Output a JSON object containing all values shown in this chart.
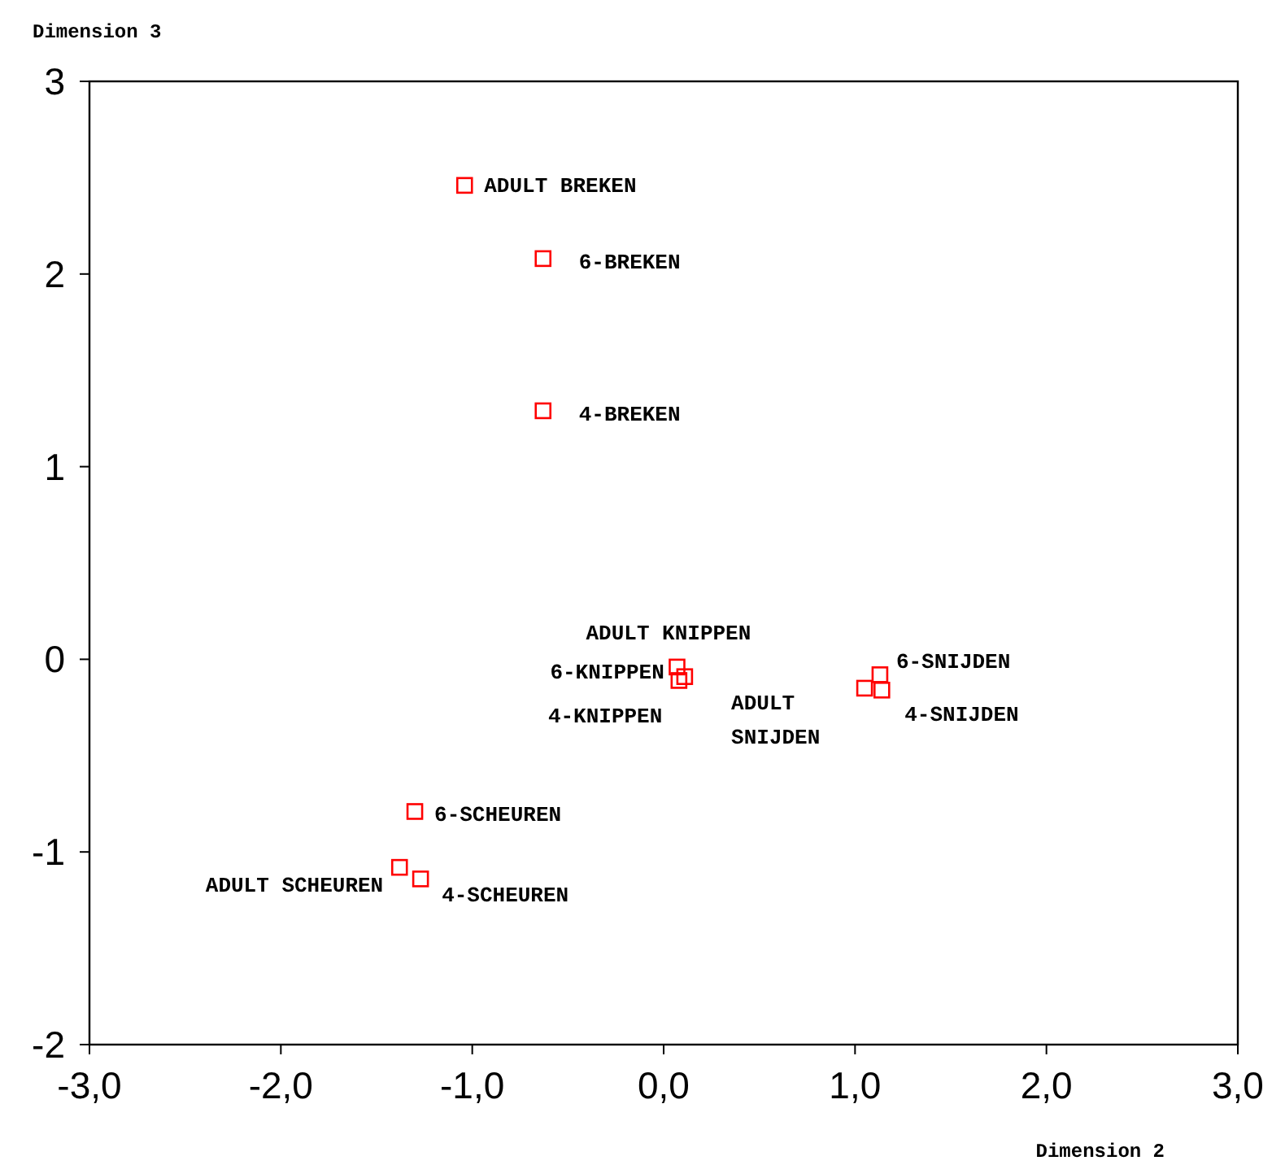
{
  "chart_data": {
    "type": "scatter",
    "xlabel": "Dimension 2",
    "ylabel": "Dimension 3",
    "marker": "square",
    "xlim": [
      -3,
      3
    ],
    "ylim": [
      -2,
      3
    ],
    "xticks": [
      {
        "value": -3,
        "label": "-3,0"
      },
      {
        "value": -2,
        "label": "-2,0"
      },
      {
        "value": -1,
        "label": "-1,0"
      },
      {
        "value": 0,
        "label": "0,0"
      },
      {
        "value": 1,
        "label": "1,0"
      },
      {
        "value": 2,
        "label": "2,0"
      },
      {
        "value": 3,
        "label": "3,0"
      }
    ],
    "yticks": [
      -2,
      -1,
      0,
      1,
      2,
      3
    ],
    "series": [
      {
        "color": "#ff0000",
        "x": [
          -1.04,
          -0.63,
          -0.63,
          0.07,
          0.08,
          0.11,
          1.05,
          1.13,
          1.14,
          -1.3,
          -1.38,
          -1.27
        ],
        "values": [
          2.46,
          2.08,
          1.29,
          -0.04,
          -0.11,
          -0.09,
          -0.15,
          -0.08,
          -0.16,
          -0.79,
          -1.08,
          -1.14
        ]
      }
    ],
    "annotations": [
      {
        "text": "ADULT BREKEN",
        "x": -1.04,
        "y": 2.46
      },
      {
        "text": "6-BREKEN",
        "x": -0.63,
        "y": 2.08
      },
      {
        "text": "4-BREKEN",
        "x": -0.63,
        "y": 1.29
      },
      {
        "text": "ADULT KNIPPEN",
        "x": 0.07,
        "y": -0.04
      },
      {
        "text": "6-KNIPPEN",
        "x": 0.08,
        "y": -0.11
      },
      {
        "text": "4-KNIPPEN",
        "x": 0.11,
        "y": -0.09
      },
      {
        "text": "ADULT SNIJDEN",
        "x": 1.05,
        "y": -0.15
      },
      {
        "text": "6-SNIJDEN",
        "x": 1.13,
        "y": -0.08
      },
      {
        "text": "4-SNIJDEN",
        "x": 1.14,
        "y": -0.16
      },
      {
        "text": "6-SCHEUREN",
        "x": -1.3,
        "y": -0.79
      },
      {
        "text": "ADULT SCHEUREN",
        "x": -1.38,
        "y": -1.08
      },
      {
        "text": "4-SCHEUREN",
        "x": -1.27,
        "y": -1.14
      }
    ]
  }
}
